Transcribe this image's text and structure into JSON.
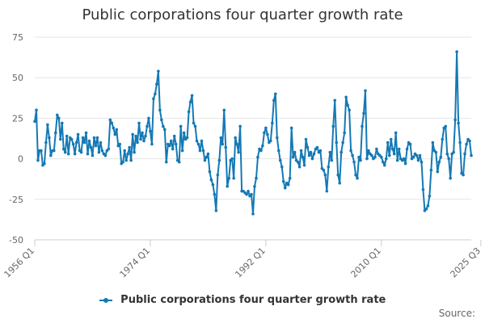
{
  "chart_data": {
    "type": "line",
    "title": "Public corporations four quarter growth rate",
    "xlabel": "",
    "ylabel": "",
    "ylim": [
      -50,
      75
    ],
    "yticks": [
      "75",
      "50",
      "25",
      "0",
      "-25",
      "-50"
    ],
    "xticks": [
      {
        "label": "1956 Q1",
        "index": 0
      },
      {
        "label": "1974 Q1",
        "index": 72
      },
      {
        "label": "1992 Q1",
        "index": 144
      },
      {
        "label": "2010 Q1",
        "index": 216
      },
      {
        "label": "2025 Q3",
        "index": 278
      }
    ],
    "grid": true,
    "legend_position": "bottom",
    "series": [
      {
        "name": "Public corporations four quarter growth rate",
        "color": "#1479b5",
        "values": [
          23,
          30,
          -1,
          5,
          5,
          -4,
          -3,
          10,
          21,
          13,
          2,
          5,
          5,
          16,
          27,
          25,
          12,
          22,
          6,
          4,
          14,
          3,
          13,
          12,
          9,
          3,
          10,
          15,
          5,
          4,
          13,
          10,
          16,
          3,
          11,
          7,
          2,
          13,
          8,
          13,
          4,
          10,
          5,
          3,
          2,
          5,
          6,
          24,
          22,
          19,
          15,
          18,
          8,
          9,
          -3,
          -2,
          5,
          -1,
          3,
          7,
          -1,
          15,
          4,
          14,
          10,
          22,
          12,
          16,
          11,
          14,
          20,
          25,
          17,
          9,
          37,
          40,
          46,
          54,
          30,
          24,
          20,
          18,
          -2,
          9,
          8,
          11,
          6,
          14,
          9,
          -1,
          -2,
          20,
          5,
          16,
          12,
          13,
          29,
          35,
          39,
          22,
          20,
          11,
          9,
          5,
          11,
          5,
          -1,
          1,
          3,
          -8,
          -13,
          -16,
          -22,
          -32,
          -10,
          -1,
          13,
          9,
          30,
          7,
          -17,
          -12,
          -1,
          0,
          -12,
          13,
          9,
          4,
          20,
          -20,
          -20,
          -21,
          -22,
          -20,
          -23,
          -22,
          -34,
          -17,
          -12,
          1,
          6,
          5,
          8,
          16,
          19,
          15,
          10,
          11,
          22,
          36,
          40,
          13,
          5,
          -1,
          -5,
          -14,
          -18,
          -15,
          -16,
          -12,
          19,
          1,
          4,
          -1,
          -2,
          -5,
          5,
          1,
          -4,
          12,
          7,
          2,
          4,
          0,
          3,
          6,
          7,
          4,
          5,
          -6,
          -7,
          -10,
          -20,
          -5,
          4,
          -1,
          20,
          36,
          10,
          -10,
          -15,
          4,
          10,
          16,
          38,
          33,
          30,
          5,
          2,
          -2,
          -10,
          -12,
          1,
          -1,
          20,
          28,
          42,
          0,
          5,
          3,
          2,
          0,
          1,
          6,
          3,
          2,
          1,
          -2,
          -4,
          0,
          10,
          2,
          12,
          6,
          3,
          16,
          -1,
          6,
          0,
          -1,
          0,
          -3,
          6,
          10,
          9,
          0,
          1,
          3,
          2,
          -1,
          2,
          -2,
          -19,
          -32,
          -31,
          -29,
          -23,
          -7,
          10,
          5,
          4,
          -8,
          -2,
          1,
          12,
          19,
          20,
          3,
          0,
          -12,
          3,
          4,
          24,
          66,
          22,
          10,
          -9,
          -10,
          3,
          9,
          12,
          11,
          2
        ]
      }
    ]
  },
  "legend": {
    "label": "Public corporations four quarter growth rate"
  },
  "source": {
    "label": "Source:"
  }
}
